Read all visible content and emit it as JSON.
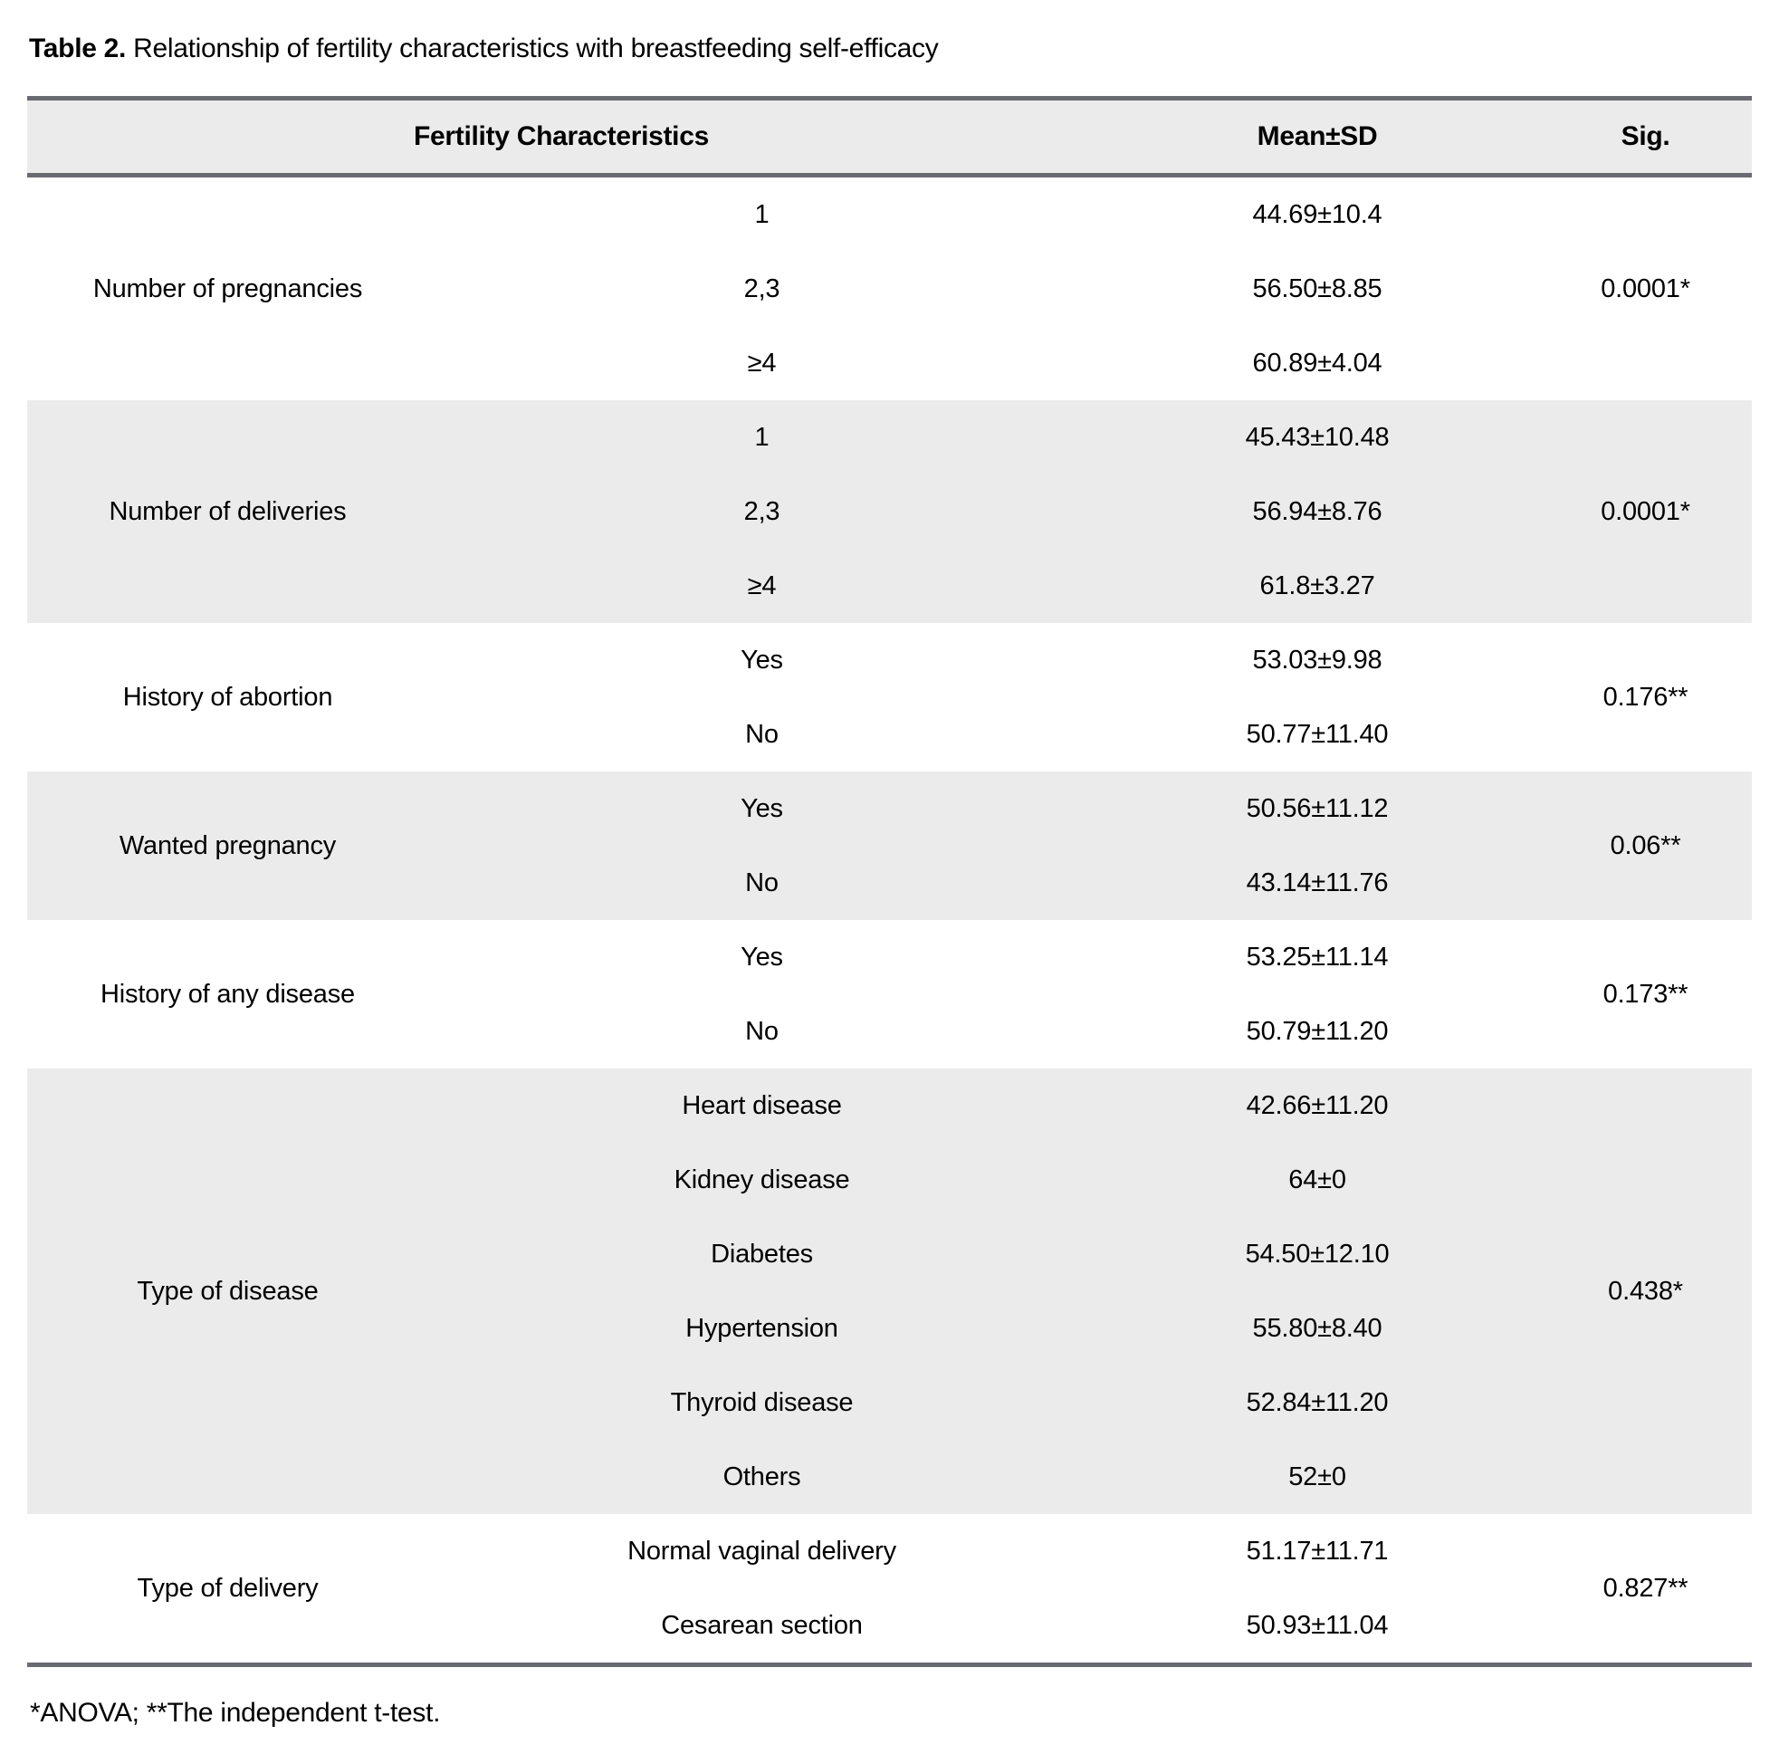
{
  "title": {
    "label": "Table 2.",
    "text": " Relationship of fertility characteristics with breastfeeding self-efficacy"
  },
  "table": {
    "headers": {
      "characteristics": "Fertility Characteristics",
      "mean_sd": "Mean±SD",
      "sig": "Sig."
    },
    "groups": [
      {
        "label": "Number of pregnancies",
        "sig": "0.0001*",
        "rows": [
          {
            "category": "1",
            "mean_sd": "44.69±10.4"
          },
          {
            "category": "2,3",
            "mean_sd": "56.50±8.85"
          },
          {
            "category": "≥4",
            "mean_sd": "60.89±4.04"
          }
        ]
      },
      {
        "label": "Number of deliveries",
        "sig": "0.0001*",
        "rows": [
          {
            "category": "1",
            "mean_sd": "45.43±10.48"
          },
          {
            "category": "2,3",
            "mean_sd": "56.94±8.76"
          },
          {
            "category": "≥4",
            "mean_sd": "61.8±3.27"
          }
        ]
      },
      {
        "label": "History of abortion",
        "sig": "0.176**",
        "rows": [
          {
            "category": "Yes",
            "mean_sd": "53.03±9.98"
          },
          {
            "category": "No",
            "mean_sd": "50.77±11.40"
          }
        ]
      },
      {
        "label": "Wanted pregnancy",
        "sig": "0.06**",
        "rows": [
          {
            "category": "Yes",
            "mean_sd": "50.56±11.12"
          },
          {
            "category": "No",
            "mean_sd": "43.14±11.76"
          }
        ]
      },
      {
        "label": "History of any disease",
        "sig": "0.173**",
        "rows": [
          {
            "category": "Yes",
            "mean_sd": "53.25±11.14"
          },
          {
            "category": "No",
            "mean_sd": "50.79±11.20"
          }
        ]
      },
      {
        "label": "Type of disease",
        "sig": "0.438*",
        "rows": [
          {
            "category": "Heart disease",
            "mean_sd": "42.66±11.20"
          },
          {
            "category": "Kidney disease",
            "mean_sd": "64±0"
          },
          {
            "category": "Diabetes",
            "mean_sd": "54.50±12.10"
          },
          {
            "category": "Hypertension",
            "mean_sd": "55.80±8.40"
          },
          {
            "category": "Thyroid disease",
            "mean_sd": "52.84±11.20"
          },
          {
            "category": "Others",
            "mean_sd": "52±0"
          }
        ]
      },
      {
        "label": "Type of delivery",
        "sig": "0.827**",
        "rows": [
          {
            "category": "Normal vaginal delivery",
            "mean_sd": "51.17±11.71"
          },
          {
            "category": "Cesarean section",
            "mean_sd": "50.93±11.04"
          }
        ]
      }
    ]
  },
  "footnote": "*ANOVA; **The independent t-test.",
  "colors": {
    "border": "#6a6a72",
    "shaded_row": "#ebebeb",
    "header_bg": "#ebebeb",
    "text": "#000000"
  }
}
